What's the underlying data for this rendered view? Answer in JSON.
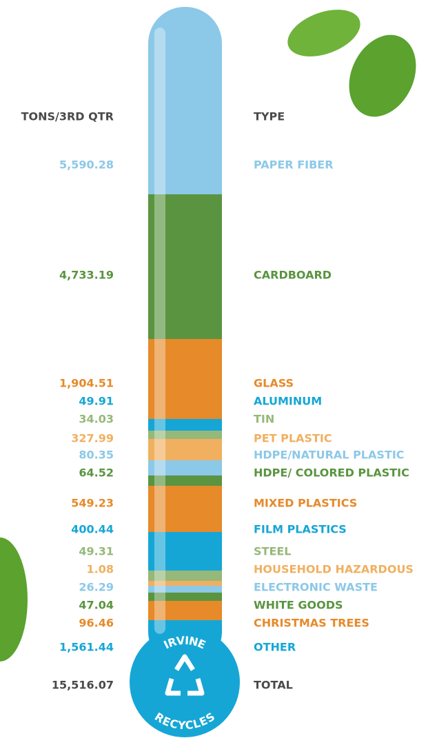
{
  "header": {
    "amount": "TONS/3RD QTR",
    "type": "TYPE"
  },
  "rows": [
    {
      "amount": "5,590.28",
      "type": "PAPER FIBER",
      "color": "#8cc8e8"
    },
    {
      "amount": "4,733.19",
      "type": "CARDBOARD",
      "color": "#5a9440"
    },
    {
      "amount": "1,904.51",
      "type": "GLASS",
      "color": "#e68a2a"
    },
    {
      "amount": "49.91",
      "type": "ALUMINUM",
      "color": "#16a6d6"
    },
    {
      "amount": "34.03",
      "type": "TIN",
      "color": "#96b87a"
    },
    {
      "amount": "327.99",
      "type": "PET PLASTIC",
      "color": "#f0b060"
    },
    {
      "amount": "80.35",
      "type": "HDPE/NATURAL PLASTIC",
      "color": "#8cc8e8"
    },
    {
      "amount": "64.52",
      "type": "HDPE/ COLORED PLASTIC",
      "color": "#5a9440"
    },
    {
      "amount": "549.23",
      "type": "MIXED PLASTICS",
      "color": "#e68a2a"
    },
    {
      "amount": "400.44",
      "type": "FILM PLASTICS",
      "color": "#16a6d6"
    },
    {
      "amount": "49.31",
      "type": "STEEL",
      "color": "#96b87a"
    },
    {
      "amount": "1.08",
      "type": "HOUSEHOLD HAZARDOUS",
      "color": "#f0b060"
    },
    {
      "amount": "26.29",
      "type": "ELECTRONIC WASTE",
      "color": "#8cc8e8"
    },
    {
      "amount": "47.04",
      "type": "WHITE GOODS",
      "color": "#5a9440"
    },
    {
      "amount": "96.46",
      "type": "CHRISTMAS TREES",
      "color": "#e68a2a"
    },
    {
      "amount": "1,561.44",
      "type": "OTHER",
      "color": "#16a6d6"
    }
  ],
  "total": {
    "amount": "15,516.07",
    "type": "TOTAL"
  },
  "badge": {
    "top": "IRVINE",
    "bottom": "RECYCLES"
  }
}
